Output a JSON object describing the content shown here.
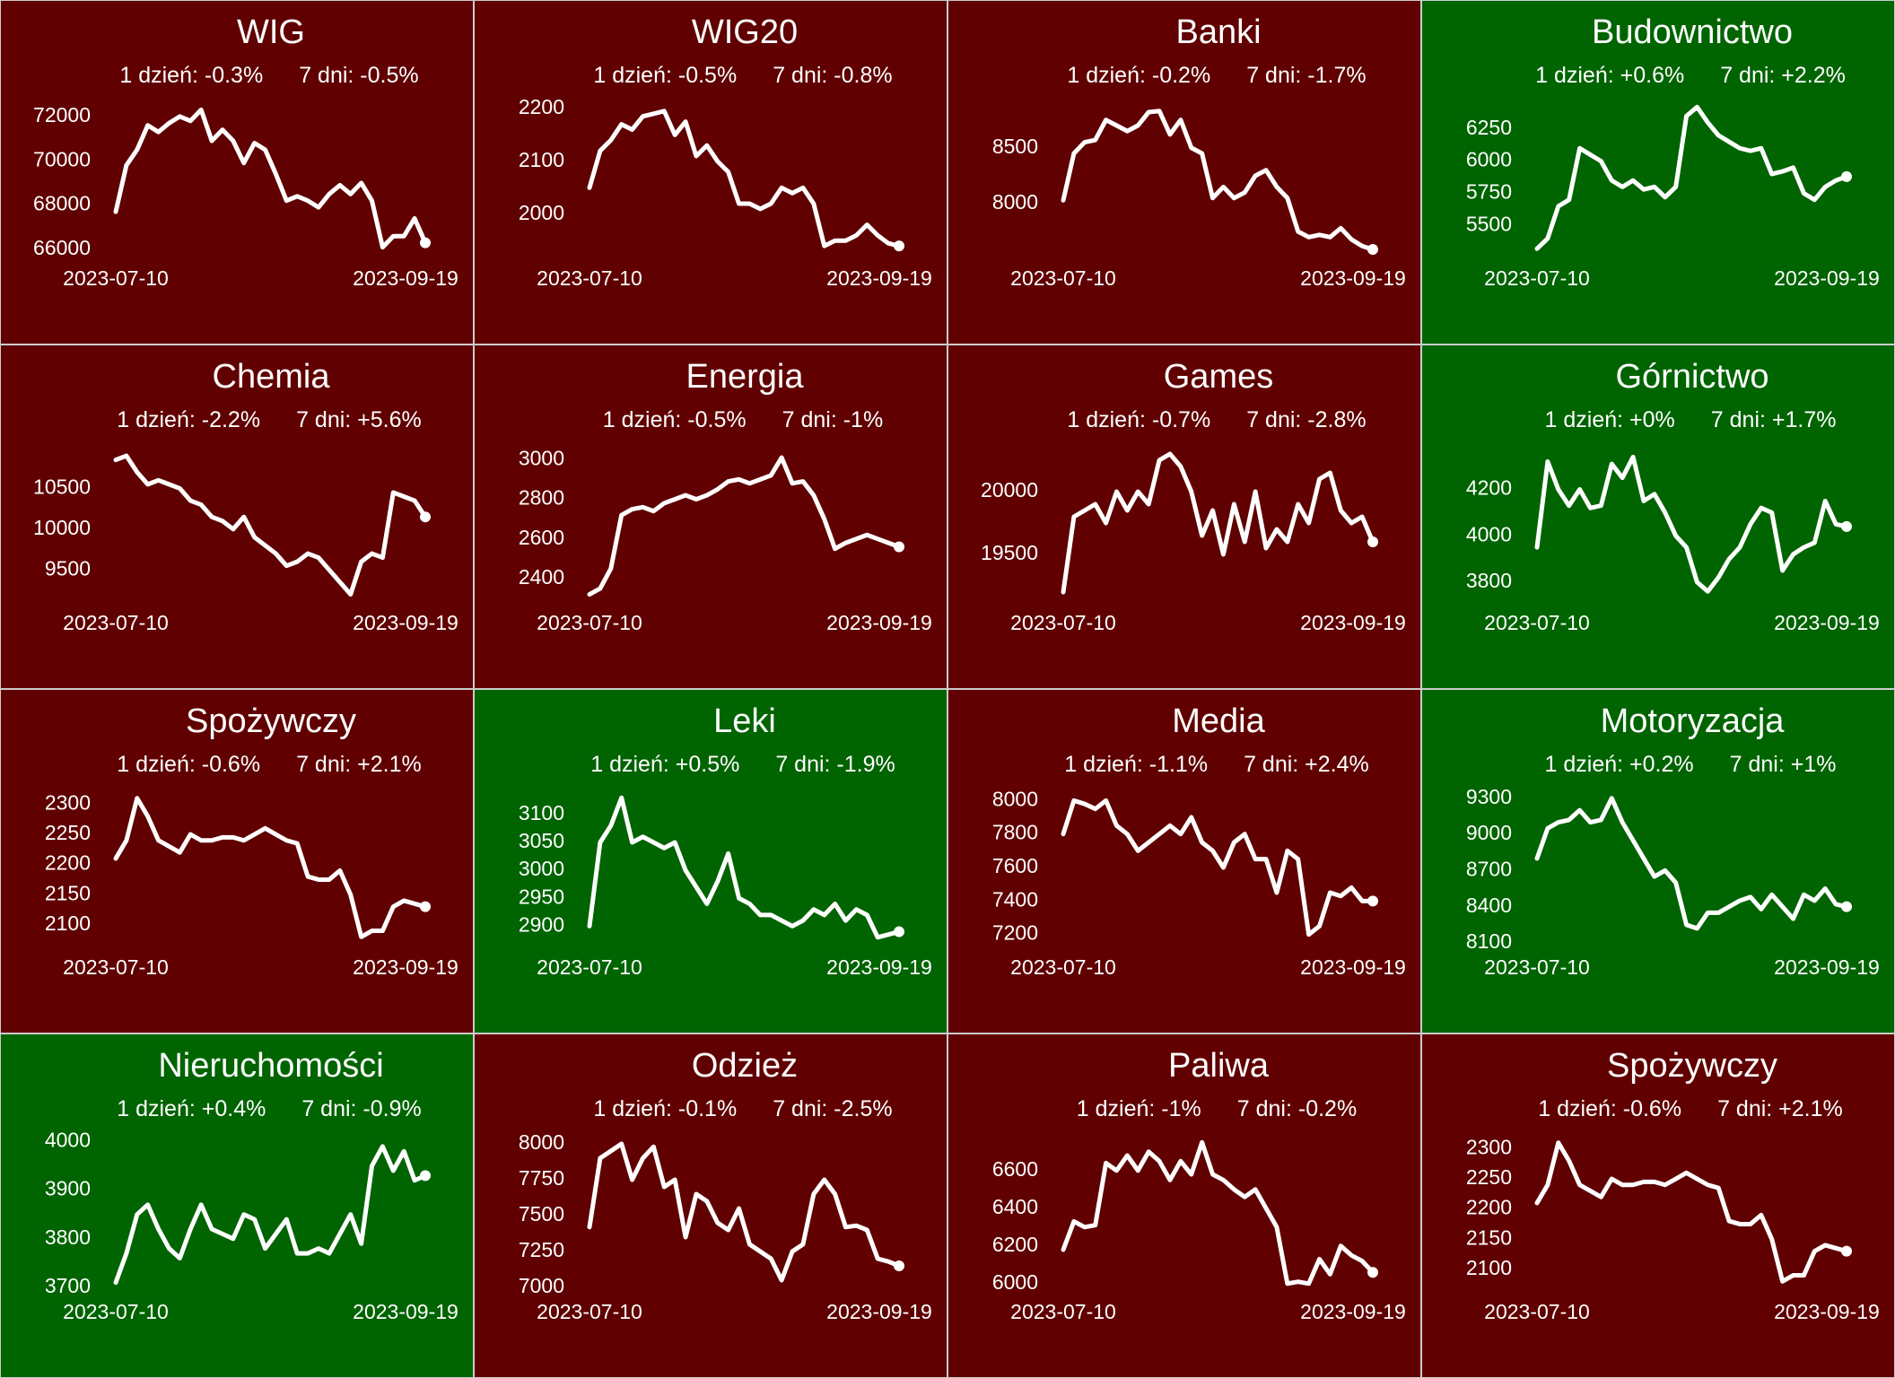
{
  "chart_data": [
    {
      "type": "line",
      "title": "WIG",
      "change_1d": "1 dzień: -0.3%",
      "change_7d": "7 dni: -0.5%",
      "background": "#600000",
      "color": "#ffffff",
      "categories": [
        "2023-07-10",
        null,
        null,
        null,
        null,
        null,
        null,
        null,
        null,
        null,
        null,
        null,
        null,
        null,
        null,
        null,
        null,
        null,
        null,
        null,
        null,
        null,
        null,
        null,
        null,
        null,
        null,
        null,
        null,
        "2023-09-19"
      ],
      "values": [
        67700,
        69800,
        70500,
        71600,
        71300,
        71700,
        72000,
        71800,
        72300,
        70900,
        71400,
        70900,
        69900,
        70800,
        70500,
        69400,
        68200,
        68400,
        68200,
        67900,
        68500,
        68900,
        68500,
        69000,
        68200,
        66100,
        66600,
        66600,
        67400,
        66300
      ],
      "ylim": [
        65800,
        72600
      ],
      "yticks": [
        66000,
        68000,
        70000,
        72000
      ]
    },
    {
      "type": "line",
      "title": "WIG20",
      "change_1d": "1 dzień: -0.5%",
      "change_7d": "7 dni: -0.8%",
      "background": "#600000",
      "color": "#ffffff",
      "categories": [
        "2023-07-10",
        null,
        null,
        null,
        null,
        null,
        null,
        null,
        null,
        null,
        null,
        null,
        null,
        null,
        null,
        null,
        null,
        null,
        null,
        null,
        null,
        null,
        null,
        null,
        null,
        null,
        null,
        null,
        null,
        "2023-09-19"
      ],
      "values": [
        2050,
        2120,
        2140,
        2170,
        2160,
        2185,
        2190,
        2195,
        2150,
        2175,
        2110,
        2130,
        2100,
        2080,
        2020,
        2020,
        2010,
        2020,
        2050,
        2040,
        2050,
        2020,
        1940,
        1950,
        1950,
        1960,
        1980,
        1960,
        1945,
        1940
      ],
      "ylim": [
        1925,
        2210
      ],
      "yticks": [
        2000,
        2100,
        2200
      ]
    },
    {
      "type": "line",
      "title": "Banki",
      "change_1d": "1 dzień: -0.2%",
      "change_7d": "7 dni: -1.7%",
      "background": "#600000",
      "color": "#ffffff",
      "categories": [
        "2023-07-10",
        null,
        null,
        null,
        null,
        null,
        null,
        null,
        null,
        null,
        null,
        null,
        null,
        null,
        null,
        null,
        null,
        null,
        null,
        null,
        null,
        null,
        null,
        null,
        null,
        null,
        null,
        null,
        null,
        "2023-09-19"
      ],
      "values": [
        8030,
        8450,
        8550,
        8570,
        8750,
        8700,
        8650,
        8700,
        8820,
        8830,
        8620,
        8750,
        8500,
        8450,
        8050,
        8150,
        8050,
        8100,
        8250,
        8300,
        8150,
        8050,
        7750,
        7700,
        7720,
        7700,
        7780,
        7680,
        7620,
        7590
      ],
      "ylim": [
        7550,
        8900
      ],
      "yticks": [
        8000,
        8500
      ]
    },
    {
      "type": "line",
      "title": "Budownictwo",
      "change_1d": "1 dzień: +0.6%",
      "change_7d": "7 dni: +2.2%",
      "background": "#006400",
      "color": "#ffffff",
      "categories": [
        "2023-07-10",
        null,
        null,
        null,
        null,
        null,
        null,
        null,
        null,
        null,
        null,
        null,
        null,
        null,
        null,
        null,
        null,
        null,
        null,
        null,
        null,
        null,
        null,
        null,
        null,
        null,
        null,
        null,
        null,
        "2023-09-19"
      ],
      "values": [
        5320,
        5400,
        5650,
        5700,
        6100,
        6050,
        6000,
        5850,
        5800,
        5850,
        5780,
        5800,
        5720,
        5800,
        6350,
        6420,
        6300,
        6200,
        6150,
        6100,
        6080,
        6100,
        5900,
        5920,
        5950,
        5750,
        5700,
        5800,
        5850,
        5880
      ],
      "ylim": [
        5280,
        6450
      ],
      "yticks": [
        5500,
        5750,
        6000,
        6250
      ]
    },
    {
      "type": "line",
      "title": "Chemia",
      "change_1d": "1 dzień: -2.2%",
      "change_7d": "7 dni: +5.6%",
      "background": "#600000",
      "color": "#ffffff",
      "categories": [
        "2023-07-10",
        null,
        null,
        null,
        null,
        null,
        null,
        null,
        null,
        null,
        null,
        null,
        null,
        null,
        null,
        null,
        null,
        null,
        null,
        null,
        null,
        null,
        null,
        null,
        null,
        null,
        null,
        null,
        null,
        "2023-09-19"
      ],
      "values": [
        10850,
        10900,
        10700,
        10550,
        10600,
        10550,
        10500,
        10350,
        10300,
        10150,
        10100,
        10000,
        10150,
        9900,
        9800,
        9700,
        9550,
        9600,
        9700,
        9650,
        9500,
        9350,
        9200,
        9600,
        9700,
        9650,
        10450,
        10400,
        10350,
        10150
      ],
      "ylim": [
        9150,
        11000
      ],
      "yticks": [
        9500,
        10000,
        10500
      ]
    },
    {
      "type": "line",
      "title": "Energia",
      "change_1d": "1 dzień: -0.5%",
      "change_7d": "7 dni: -1%",
      "background": "#600000",
      "color": "#ffffff",
      "categories": [
        "2023-07-10",
        null,
        null,
        null,
        null,
        null,
        null,
        null,
        null,
        null,
        null,
        null,
        null,
        null,
        null,
        null,
        null,
        null,
        null,
        null,
        null,
        null,
        null,
        null,
        null,
        null,
        null,
        null,
        null,
        "2023-09-19"
      ],
      "values": [
        2320,
        2350,
        2450,
        2720,
        2750,
        2760,
        2740,
        2780,
        2800,
        2820,
        2800,
        2820,
        2850,
        2890,
        2900,
        2880,
        2900,
        2920,
        3010,
        2880,
        2890,
        2820,
        2700,
        2550,
        2580,
        2600,
        2620,
        2600,
        2580,
        2560
      ],
      "ylim": [
        2300,
        3060
      ],
      "yticks": [
        2400,
        2600,
        2800,
        3000
      ]
    },
    {
      "type": "line",
      "title": "Games",
      "change_1d": "1 dzień: -0.7%",
      "change_7d": "7 dni: -2.8%",
      "background": "#600000",
      "color": "#ffffff",
      "categories": [
        "2023-07-10",
        null,
        null,
        null,
        null,
        null,
        null,
        null,
        null,
        null,
        null,
        null,
        null,
        null,
        null,
        null,
        null,
        null,
        null,
        null,
        null,
        null,
        null,
        null,
        null,
        null,
        null,
        null,
        null,
        "2023-09-19"
      ],
      "values": [
        19200,
        19800,
        19850,
        19900,
        19750,
        20000,
        19850,
        20000,
        19900,
        20250,
        20300,
        20200,
        20000,
        19650,
        19850,
        19500,
        19900,
        19600,
        20000,
        19550,
        19700,
        19600,
        19900,
        19750,
        20100,
        20150,
        19850,
        19750,
        19800,
        19600
      ],
      "ylim": [
        19150,
        20350
      ],
      "yticks": [
        19500,
        20000
      ]
    },
    {
      "type": "line",
      "title": "Górnictwo",
      "change_1d": "1 dzień: +0%",
      "change_7d": "7 dni: +1.7%",
      "background": "#006400",
      "color": "#ffffff",
      "categories": [
        "2023-07-10",
        null,
        null,
        null,
        null,
        null,
        null,
        null,
        null,
        null,
        null,
        null,
        null,
        null,
        null,
        null,
        null,
        null,
        null,
        null,
        null,
        null,
        null,
        null,
        null,
        null,
        null,
        null,
        null,
        "2023-09-19"
      ],
      "values": [
        3950,
        4320,
        4200,
        4130,
        4200,
        4120,
        4130,
        4310,
        4250,
        4340,
        4150,
        4180,
        4100,
        4000,
        3950,
        3800,
        3760,
        3820,
        3900,
        3950,
        4050,
        4120,
        4100,
        3850,
        3920,
        3950,
        3970,
        4150,
        4050,
        4040
      ],
      "ylim": [
        3730,
        4380
      ],
      "yticks": [
        3800,
        4000,
        4200
      ]
    },
    {
      "type": "line",
      "title": "Spożywczy",
      "change_1d": "1 dzień: -0.6%",
      "change_7d": "7 dni: +2.1%",
      "background": "#600000",
      "color": "#ffffff",
      "categories": [
        "2023-07-10",
        null,
        null,
        null,
        null,
        null,
        null,
        null,
        null,
        null,
        null,
        null,
        null,
        null,
        null,
        null,
        null,
        null,
        null,
        null,
        null,
        null,
        null,
        null,
        null,
        null,
        null,
        null,
        null,
        "2023-09-19"
      ],
      "values": [
        2210,
        2240,
        2310,
        2280,
        2240,
        2230,
        2220,
        2250,
        2240,
        2240,
        2245,
        2245,
        2240,
        2250,
        2260,
        2250,
        2240,
        2235,
        2180,
        2175,
        2175,
        2190,
        2150,
        2080,
        2090,
        2090,
        2130,
        2140,
        2135,
        2130
      ],
      "ylim": [
        2070,
        2320
      ],
      "yticks": [
        2100,
        2150,
        2200,
        2250,
        2300
      ]
    },
    {
      "type": "line",
      "title": "Leki",
      "change_1d": "1 dzień: +0.5%",
      "change_7d": "7 dni: -1.9%",
      "background": "#006400",
      "color": "#ffffff",
      "categories": [
        "2023-07-10",
        null,
        null,
        null,
        null,
        null,
        null,
        null,
        null,
        null,
        null,
        null,
        null,
        null,
        null,
        null,
        null,
        null,
        null,
        null,
        null,
        null,
        null,
        null,
        null,
        null,
        null,
        null,
        null,
        "2023-09-19"
      ],
      "values": [
        2900,
        3050,
        3080,
        3130,
        3050,
        3060,
        3050,
        3040,
        3050,
        3000,
        2970,
        2940,
        2980,
        3030,
        2950,
        2940,
        2920,
        2920,
        2910,
        2900,
        2910,
        2930,
        2920,
        2940,
        2910,
        2930,
        2920,
        2880,
        2885,
        2890
      ],
      "ylim": [
        2870,
        3140
      ],
      "yticks": [
        2900,
        2950,
        3000,
        3050,
        3100
      ]
    },
    {
      "type": "line",
      "title": "Media",
      "change_1d": "1 dzień: -1.1%",
      "change_7d": "7 dni: +2.4%",
      "background": "#600000",
      "color": "#ffffff",
      "categories": [
        "2023-07-10",
        null,
        null,
        null,
        null,
        null,
        null,
        null,
        null,
        null,
        null,
        null,
        null,
        null,
        null,
        null,
        null,
        null,
        null,
        null,
        null,
        null,
        null,
        null,
        null,
        null,
        null,
        null,
        null,
        "2023-09-19"
      ],
      "values": [
        7800,
        8000,
        7980,
        7950,
        8000,
        7850,
        7800,
        7700,
        7750,
        7800,
        7850,
        7800,
        7900,
        7750,
        7700,
        7600,
        7750,
        7800,
        7650,
        7650,
        7450,
        7700,
        7650,
        7200,
        7250,
        7450,
        7430,
        7480,
        7400,
        7400
      ],
      "ylim": [
        7150,
        8050
      ],
      "yticks": [
        7200,
        7400,
        7600,
        7800,
        8000
      ]
    },
    {
      "type": "line",
      "title": "Motoryzacja",
      "change_1d": "1 dzień: +0.2%",
      "change_7d": "7 dni: +1%",
      "background": "#006400",
      "color": "#ffffff",
      "categories": [
        "2023-07-10",
        null,
        null,
        null,
        null,
        null,
        null,
        null,
        null,
        null,
        null,
        null,
        null,
        null,
        null,
        null,
        null,
        null,
        null,
        null,
        null,
        null,
        null,
        null,
        null,
        null,
        null,
        null,
        null,
        "2023-09-19"
      ],
      "values": [
        8800,
        9050,
        9100,
        9120,
        9200,
        9100,
        9120,
        9300,
        9100,
        8950,
        8800,
        8650,
        8700,
        8600,
        8250,
        8220,
        8350,
        8350,
        8400,
        8450,
        8480,
        8380,
        8500,
        8400,
        8300,
        8500,
        8450,
        8550,
        8420,
        8400
      ],
      "ylim": [
        8100,
        9350
      ],
      "yticks": [
        8100,
        8400,
        8700,
        9000,
        9300
      ]
    },
    {
      "type": "line",
      "title": "Nieruchomości",
      "change_1d": "1 dzień: +0.4%",
      "change_7d": "7 dni: -0.9%",
      "background": "#006400",
      "color": "#ffffff",
      "categories": [
        "2023-07-10",
        null,
        null,
        null,
        null,
        null,
        null,
        null,
        null,
        null,
        null,
        null,
        null,
        null,
        null,
        null,
        null,
        null,
        null,
        null,
        null,
        null,
        null,
        null,
        null,
        null,
        null,
        null,
        null,
        "2023-09-19"
      ],
      "values": [
        3710,
        3770,
        3850,
        3870,
        3820,
        3780,
        3760,
        3820,
        3870,
        3820,
        3810,
        3800,
        3850,
        3840,
        3780,
        3810,
        3840,
        3770,
        3770,
        3780,
        3770,
        3810,
        3850,
        3790,
        3950,
        3990,
        3940,
        3980,
        3920,
        3930
      ],
      "ylim": [
        3700,
        4010
      ],
      "yticks": [
        3700,
        3800,
        3900,
        4000
      ]
    },
    {
      "type": "line",
      "title": "Odzież",
      "change_1d": "1 dzień: -0.1%",
      "change_7d": "7 dni: -2.5%",
      "background": "#600000",
      "color": "#ffffff",
      "categories": [
        "2023-07-10",
        null,
        null,
        null,
        null,
        null,
        null,
        null,
        null,
        null,
        null,
        null,
        null,
        null,
        null,
        null,
        null,
        null,
        null,
        null,
        null,
        null,
        null,
        null,
        null,
        null,
        null,
        null,
        null,
        "2023-09-19"
      ],
      "values": [
        7420,
        7900,
        7950,
        8000,
        7750,
        7900,
        7980,
        7700,
        7750,
        7350,
        7650,
        7600,
        7450,
        7400,
        7550,
        7300,
        7250,
        7200,
        7050,
        7250,
        7300,
        7650,
        7750,
        7650,
        7420,
        7430,
        7400,
        7200,
        7180,
        7150
      ],
      "ylim": [
        7000,
        8050
      ],
      "yticks": [
        7000,
        7250,
        7500,
        7750,
        8000
      ]
    },
    {
      "type": "line",
      "title": "Paliwa",
      "change_1d": "1 dzień: -1%",
      "change_7d": "7 dni: -0.2%",
      "background": "#600000",
      "color": "#ffffff",
      "categories": [
        "2023-07-10",
        null,
        null,
        null,
        null,
        null,
        null,
        null,
        null,
        null,
        null,
        null,
        null,
        null,
        null,
        null,
        null,
        null,
        null,
        null,
        null,
        null,
        null,
        null,
        null,
        null,
        null,
        null,
        null,
        "2023-09-19"
      ],
      "values": [
        6180,
        6330,
        6300,
        6310,
        6640,
        6600,
        6680,
        6600,
        6700,
        6650,
        6550,
        6650,
        6580,
        6750,
        6580,
        6550,
        6500,
        6460,
        6500,
        6400,
        6300,
        6000,
        6010,
        6000,
        6130,
        6050,
        6200,
        6150,
        6120,
        6060
      ],
      "ylim": [
        5980,
        6780
      ],
      "yticks": [
        6000,
        6200,
        6400,
        6600
      ]
    },
    {
      "type": "line",
      "title": "Spożywczy",
      "change_1d": "1 dzień: -0.6%",
      "change_7d": "7 dni: +2.1%",
      "background": "#600000",
      "color": "#ffffff",
      "categories": [
        "2023-07-10",
        null,
        null,
        null,
        null,
        null,
        null,
        null,
        null,
        null,
        null,
        null,
        null,
        null,
        null,
        null,
        null,
        null,
        null,
        null,
        null,
        null,
        null,
        null,
        null,
        null,
        null,
        null,
        null,
        "2023-09-19"
      ],
      "values": [
        2210,
        2240,
        2310,
        2280,
        2240,
        2230,
        2220,
        2250,
        2240,
        2240,
        2245,
        2245,
        2240,
        2250,
        2260,
        2250,
        2240,
        2235,
        2180,
        2175,
        2175,
        2190,
        2150,
        2080,
        2090,
        2090,
        2130,
        2140,
        2135,
        2130
      ],
      "ylim": [
        2070,
        2320
      ],
      "yticks": [
        2100,
        2150,
        2200,
        2250,
        2300
      ]
    }
  ]
}
